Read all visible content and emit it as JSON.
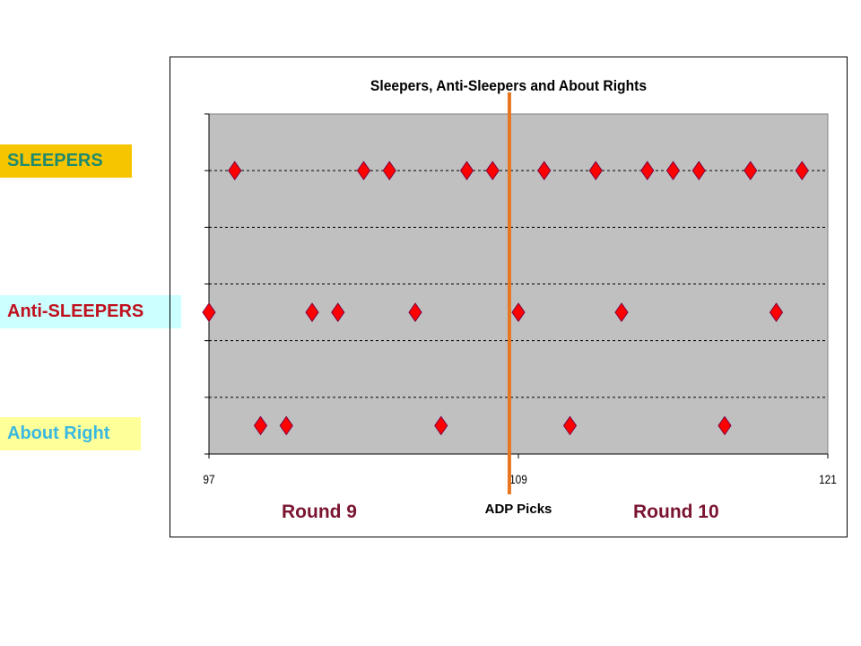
{
  "side_labels": [
    {
      "text": "SLEEPERS",
      "bg": "#F7C400",
      "color": "#1E8A6E"
    },
    {
      "text": "Anti-SLEEPERS",
      "bg": "#CCFFFF",
      "color": "#C0101E"
    },
    {
      "text": "About Right",
      "bg": "#FFFF99",
      "color": "#3BB8E0"
    }
  ],
  "round_labels": [
    "Round 9",
    "Round 10"
  ],
  "chart_data": {
    "type": "scatter",
    "title": "Sleepers, Anti-Sleepers and About Rights",
    "xlabel": "ADP Picks",
    "ylabel": "",
    "xlim": [
      97,
      121
    ],
    "ylim": [
      0,
      6
    ],
    "x_ticks": [
      97,
      109,
      121
    ],
    "grid": "horizontal dashed",
    "plot_bg": "#C0C0C0",
    "marker": "diamond",
    "marker_color": "#FF0000",
    "vertical_line": {
      "x": 108.65,
      "color": "#E87722"
    },
    "series": [
      {
        "x": [
          98,
          103,
          104,
          107,
          108,
          110,
          112,
          114,
          115,
          116,
          118,
          120
        ],
        "y": 5
      },
      {
        "x": [
          97,
          101,
          102,
          105,
          109,
          113,
          119
        ],
        "y": 2.5
      },
      {
        "x": [
          99,
          100,
          106,
          111,
          117
        ],
        "y": 0.5
      }
    ]
  }
}
